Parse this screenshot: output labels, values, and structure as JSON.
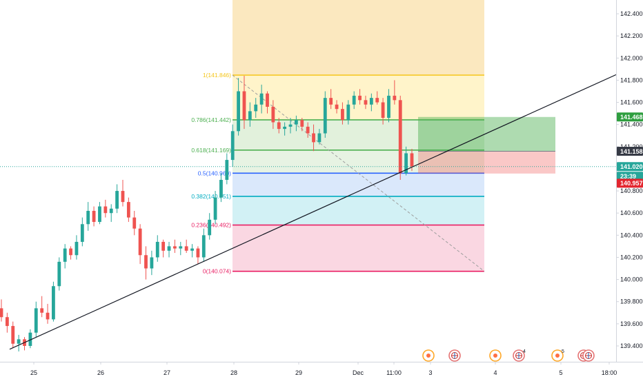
{
  "chart_data": {
    "type": "candlestick",
    "y_axis": {
      "position": "right",
      "ticks": [
        "142.400",
        "142.200",
        "142.000",
        "141.800",
        "141.600",
        "141.400",
        "141.200",
        "141.000",
        "140.800",
        "140.600",
        "140.400",
        "140.200",
        "140.000",
        "139.800",
        "139.600",
        "139.400"
      ],
      "ylim": [
        139.33,
        142.57
      ]
    },
    "x_axis": {
      "ticks": [
        "25",
        "26",
        "27",
        "28",
        "29",
        "Dec",
        "11:00",
        "3",
        "4",
        "5",
        "18:00"
      ]
    },
    "price_badges": [
      {
        "value": "141.468",
        "color": "#2e9e3f"
      },
      {
        "value": "141.158",
        "color": "#363a45"
      },
      {
        "value": "141.020",
        "color": "#26a69a"
      },
      {
        "value": "23:39",
        "color": "#26a69a"
      },
      {
        "value": "140.957",
        "color": "#e3262f"
      }
    ],
    "current_price": 141.02,
    "fib_levels": [
      {
        "ratio": "1",
        "price": 141.846,
        "label": "1(141.846)",
        "color": "#f5c518"
      },
      {
        "ratio": "0.786",
        "price": 141.442,
        "label": "0.786(141.442)",
        "color": "#4caf50"
      },
      {
        "ratio": "0.618",
        "price": 141.169,
        "label": "0.618(141.169)",
        "color": "#4caf50"
      },
      {
        "ratio": "0.5",
        "price": 140.96,
        "label": "0.5(140.960)",
        "color": "#2962ff"
      },
      {
        "ratio": "0.382",
        "price": 140.751,
        "label": "0.382(140.751)",
        "color": "#00acc1"
      },
      {
        "ratio": "0.236",
        "price": 140.492,
        "label": "0.236(140.492)",
        "color": "#e91e63"
      },
      {
        "ratio": "0",
        "price": 140.074,
        "label": "0(140.074)",
        "color": "#e91e63"
      }
    ],
    "trendline": {
      "from_price": 139.37,
      "to_price": 141.85,
      "color": "#131722"
    },
    "position": {
      "entry": 141.158,
      "target": 141.468,
      "stop": 140.957,
      "profit_color": "#4caf50",
      "loss_color": "#ef5350"
    },
    "candles": [
      [
        139.74,
        139.82,
        139.62,
        139.66
      ],
      [
        139.66,
        139.7,
        139.52,
        139.58
      ],
      [
        139.58,
        139.62,
        139.38,
        139.42
      ],
      [
        139.42,
        139.5,
        139.35,
        139.46
      ],
      [
        139.46,
        139.48,
        139.36,
        139.4
      ],
      [
        139.4,
        139.55,
        139.38,
        139.52
      ],
      [
        139.52,
        139.8,
        139.48,
        139.74
      ],
      [
        139.74,
        139.85,
        139.66,
        139.7
      ],
      [
        139.7,
        139.78,
        139.6,
        139.64
      ],
      [
        139.64,
        139.98,
        139.62,
        139.94
      ],
      [
        139.94,
        140.2,
        139.9,
        140.16
      ],
      [
        140.16,
        140.32,
        140.1,
        140.28
      ],
      [
        140.28,
        140.3,
        140.18,
        140.22
      ],
      [
        140.22,
        140.4,
        140.18,
        140.34
      ],
      [
        140.34,
        140.56,
        140.3,
        140.5
      ],
      [
        140.5,
        140.7,
        140.44,
        140.62
      ],
      [
        140.62,
        140.66,
        140.48,
        140.52
      ],
      [
        140.52,
        140.7,
        140.5,
        140.66
      ],
      [
        140.66,
        140.72,
        140.56,
        140.6
      ],
      [
        140.6,
        140.68,
        140.52,
        140.64
      ],
      [
        140.64,
        140.86,
        140.6,
        140.8
      ],
      [
        140.8,
        140.9,
        140.66,
        140.7
      ],
      [
        140.7,
        140.74,
        140.52,
        140.56
      ],
      [
        140.56,
        140.62,
        140.4,
        140.46
      ],
      [
        140.46,
        140.5,
        140.14,
        140.22
      ],
      [
        140.22,
        140.3,
        140.0,
        140.1
      ],
      [
        140.1,
        140.26,
        140.04,
        140.2
      ],
      [
        140.2,
        140.4,
        140.16,
        140.34
      ],
      [
        140.34,
        140.36,
        140.2,
        140.26
      ],
      [
        140.26,
        140.34,
        140.2,
        140.3
      ],
      [
        140.3,
        140.36,
        140.24,
        140.28
      ],
      [
        140.28,
        140.34,
        140.22,
        140.3
      ],
      [
        140.3,
        140.36,
        140.24,
        140.26
      ],
      [
        140.26,
        140.32,
        140.2,
        140.28
      ],
      [
        140.28,
        140.3,
        140.14,
        140.2
      ],
      [
        140.2,
        140.46,
        140.16,
        140.4
      ],
      [
        140.4,
        140.6,
        140.36,
        140.54
      ],
      [
        140.54,
        140.8,
        140.5,
        140.74
      ],
      [
        140.74,
        140.96,
        140.7,
        140.9
      ],
      [
        140.9,
        141.14,
        140.86,
        141.08
      ],
      [
        141.08,
        141.4,
        141.02,
        141.34
      ],
      [
        141.34,
        141.82,
        141.3,
        141.7
      ],
      [
        141.7,
        141.84,
        141.36,
        141.44
      ],
      [
        141.44,
        141.6,
        141.38,
        141.52
      ],
      [
        141.52,
        141.64,
        141.46,
        141.58
      ],
      [
        141.58,
        141.76,
        141.5,
        141.68
      ],
      [
        141.68,
        141.7,
        141.5,
        141.56
      ],
      [
        141.56,
        141.62,
        141.36,
        141.42
      ],
      [
        141.42,
        141.46,
        141.32,
        141.36
      ],
      [
        141.36,
        141.42,
        141.3,
        141.38
      ],
      [
        141.38,
        141.46,
        141.32,
        141.4
      ],
      [
        141.4,
        141.48,
        141.34,
        141.44
      ],
      [
        141.44,
        141.46,
        141.34,
        141.38
      ],
      [
        141.38,
        141.42,
        141.28,
        141.32
      ],
      [
        141.32,
        141.4,
        141.16,
        141.24
      ],
      [
        141.24,
        141.36,
        141.22,
        141.32
      ],
      [
        141.32,
        141.7,
        141.28,
        141.64
      ],
      [
        141.64,
        141.72,
        141.54,
        141.58
      ],
      [
        141.58,
        141.62,
        141.5,
        141.54
      ],
      [
        141.54,
        141.6,
        141.4,
        141.44
      ],
      [
        141.44,
        141.62,
        141.4,
        141.58
      ],
      [
        141.58,
        141.7,
        141.54,
        141.66
      ],
      [
        141.66,
        141.72,
        141.58,
        141.62
      ],
      [
        141.62,
        141.66,
        141.54,
        141.58
      ],
      [
        141.58,
        141.68,
        141.52,
        141.64
      ],
      [
        141.64,
        141.7,
        141.58,
        141.6
      ],
      [
        141.6,
        141.64,
        141.4,
        141.46
      ],
      [
        141.46,
        141.72,
        141.42,
        141.66
      ],
      [
        141.66,
        141.8,
        141.58,
        141.62
      ],
      [
        141.62,
        141.66,
        140.9,
        140.96
      ],
      [
        140.96,
        141.2,
        140.94,
        141.14
      ],
      [
        141.14,
        141.18,
        140.98,
        141.02
      ]
    ],
    "events": [
      {
        "icon": "gauge-icon",
        "count": ""
      },
      {
        "icon": "flag-icon",
        "count": ""
      },
      {
        "icon": "gauge-icon",
        "count": ""
      },
      {
        "icon": "flag-icon",
        "count": "4"
      },
      {
        "icon": "gauge-icon",
        "count": "5"
      },
      {
        "icon": "flag-icon",
        "count": ""
      },
      {
        "icon": "flag-icon",
        "count": ""
      }
    ]
  }
}
